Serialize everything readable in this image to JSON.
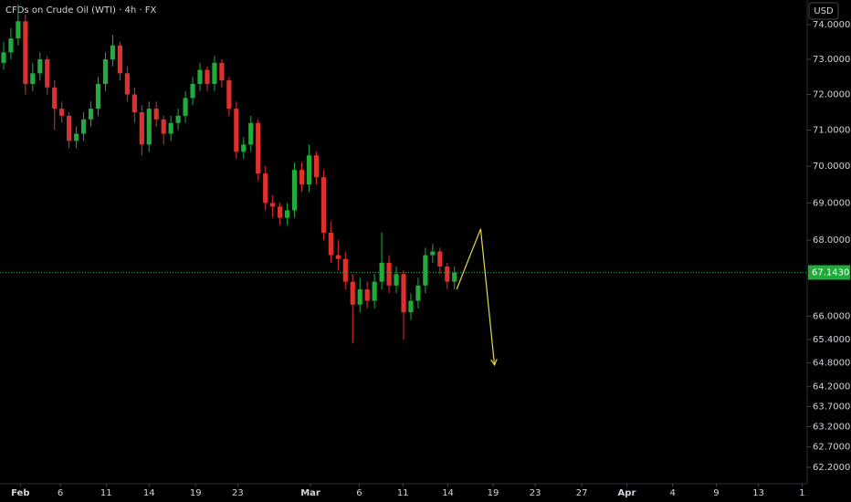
{
  "chart_data": {
    "type": "candlestick",
    "title": "CFDs on Crude Oil (WTI) · 4h · FX",
    "currency": "USD",
    "log_scale": true,
    "grid": false,
    "up_color": "#22ab3b",
    "down_color": "#e0302e",
    "x": [
      0,
      1,
      2,
      3,
      4,
      5,
      6,
      7,
      8,
      9,
      10,
      11,
      12,
      13,
      14,
      15,
      16,
      17,
      18,
      19,
      20,
      21,
      22,
      23,
      24,
      25,
      26,
      27,
      28,
      29,
      30,
      31,
      32,
      33,
      34,
      35,
      36,
      37,
      38,
      39,
      40,
      41,
      42,
      43,
      44,
      45,
      46,
      47,
      48,
      49,
      50,
      51,
      52,
      53,
      54,
      55,
      56,
      57,
      58,
      59,
      60,
      61,
      62
    ],
    "open": [
      72.9,
      73.2,
      73.6,
      74.1,
      72.3,
      72.6,
      73.0,
      72.2,
      71.6,
      71.4,
      70.7,
      70.9,
      71.3,
      71.6,
      72.3,
      73.0,
      73.4,
      72.6,
      72.0,
      71.5,
      70.6,
      71.6,
      71.3,
      70.9,
      71.2,
      71.4,
      71.9,
      72.3,
      72.7,
      72.3,
      72.9,
      72.4,
      71.6,
      70.4,
      70.6,
      71.2,
      69.8,
      69.0,
      68.9,
      68.6,
      68.8,
      69.9,
      69.5,
      70.3,
      69.7,
      68.2,
      67.6,
      67.5,
      66.9,
      66.3,
      66.7,
      66.4,
      66.9,
      67.4,
      66.8,
      67.1,
      66.1,
      66.4,
      66.8,
      67.6,
      67.7,
      67.3,
      66.9
    ],
    "high": [
      73.5,
      73.9,
      74.6,
      74.3,
      72.9,
      73.2,
      73.1,
      72.4,
      71.8,
      71.5,
      71.1,
      71.5,
      71.8,
      72.5,
      73.2,
      73.7,
      73.5,
      72.8,
      72.2,
      71.7,
      71.8,
      71.8,
      71.4,
      71.4,
      71.6,
      72.1,
      72.5,
      72.9,
      72.8,
      73.1,
      73.0,
      72.5,
      71.8,
      70.8,
      71.4,
      71.3,
      70.0,
      69.2,
      69.0,
      69.0,
      70.1,
      70.1,
      70.6,
      70.4,
      69.9,
      68.5,
      68.0,
      67.7,
      67.1,
      67.0,
      66.9,
      67.1,
      68.2,
      67.6,
      67.3,
      67.2,
      66.6,
      67.0,
      67.8,
      67.9,
      67.8,
      67.4,
      67.3
    ],
    "low": [
      72.7,
      73.0,
      73.4,
      72.0,
      72.1,
      72.4,
      72.0,
      71.0,
      71.2,
      70.5,
      70.5,
      70.7,
      71.1,
      71.4,
      72.1,
      72.8,
      72.4,
      71.8,
      71.2,
      70.3,
      70.4,
      71.1,
      70.6,
      70.7,
      71.0,
      71.2,
      71.7,
      72.1,
      72.1,
      72.1,
      72.2,
      71.4,
      70.2,
      70.2,
      70.4,
      69.6,
      68.8,
      68.6,
      68.4,
      68.4,
      68.6,
      69.3,
      69.3,
      69.5,
      68.0,
      67.4,
      67.2,
      66.7,
      65.3,
      66.1,
      66.2,
      66.2,
      66.7,
      66.6,
      66.6,
      65.4,
      65.9,
      66.2,
      66.6,
      67.4,
      67.1,
      66.7,
      66.7
    ],
    "close": [
      73.2,
      73.6,
      74.1,
      72.3,
      72.6,
      73.0,
      72.2,
      71.6,
      71.4,
      70.7,
      70.9,
      71.3,
      71.6,
      72.3,
      73.0,
      73.4,
      72.6,
      72.0,
      71.5,
      70.6,
      71.6,
      71.3,
      70.9,
      71.2,
      71.4,
      71.9,
      72.3,
      72.7,
      72.3,
      72.9,
      72.4,
      71.6,
      70.4,
      70.6,
      71.2,
      69.8,
      69.0,
      68.9,
      68.6,
      68.8,
      69.9,
      69.5,
      70.3,
      69.7,
      68.2,
      67.6,
      67.5,
      66.9,
      66.3,
      66.7,
      66.4,
      66.9,
      67.4,
      66.8,
      67.1,
      66.1,
      66.4,
      66.8,
      67.6,
      67.7,
      67.3,
      66.9,
      67.14
    ],
    "xlim": [
      -0.5,
      110
    ],
    "ylim": [
      61.8,
      74.72
    ],
    "xticks": [
      {
        "value": 2.3,
        "label": "Feb"
      },
      {
        "value": 7.8,
        "label": "6"
      },
      {
        "value": 14.1,
        "label": "11"
      },
      {
        "value": 20.0,
        "label": "14"
      },
      {
        "value": 26.4,
        "label": "19"
      },
      {
        "value": 32.2,
        "label": "23"
      },
      {
        "value": 42.2,
        "label": "Mar"
      },
      {
        "value": 48.9,
        "label": "6"
      },
      {
        "value": 54.9,
        "label": "11"
      },
      {
        "value": 61.1,
        "label": "14"
      },
      {
        "value": 67.3,
        "label": "19"
      },
      {
        "value": 73.1,
        "label": "23"
      },
      {
        "value": 79.5,
        "label": "27"
      },
      {
        "value": 85.7,
        "label": "Apr"
      },
      {
        "value": 92.0,
        "label": "4"
      },
      {
        "value": 98.0,
        "label": "9"
      },
      {
        "value": 103.8,
        "label": "13"
      },
      {
        "value": 109.8,
        "label": "1"
      }
    ],
    "yticks": [
      {
        "value": 74,
        "label": "74.0000"
      },
      {
        "value": 73,
        "label": "73.0000"
      },
      {
        "value": 72,
        "label": "72.0000"
      },
      {
        "value": 71,
        "label": "71.0000"
      },
      {
        "value": 70,
        "label": "70.0000"
      },
      {
        "value": 69,
        "label": "69.0000"
      },
      {
        "value": 68,
        "label": "68.0000"
      },
      {
        "value": 66,
        "label": "66.0000"
      },
      {
        "value": 65.4,
        "label": "65.4000"
      },
      {
        "value": 64.8,
        "label": "64.8000"
      },
      {
        "value": 64.2,
        "label": "64.2000"
      },
      {
        "value": 63.7,
        "label": "63.7000"
      },
      {
        "value": 63.2,
        "label": "63.2000"
      },
      {
        "value": 62.7,
        "label": "62.7000"
      },
      {
        "value": 62.2,
        "label": "62.2000"
      }
    ],
    "last_price": {
      "value": 67.143,
      "label": "67.1430",
      "color": "#22ab3b"
    },
    "drawing": {
      "color": "#e6d94a",
      "x": [
        62.3,
        65.6,
        67.5
      ],
      "y": [
        66.7,
        68.3,
        64.75
      ]
    }
  }
}
